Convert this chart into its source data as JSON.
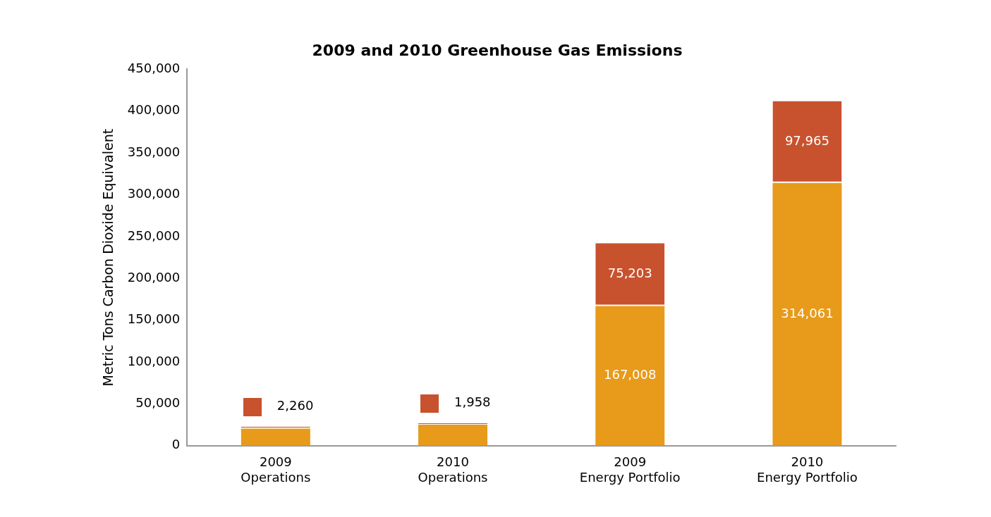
{
  "chart_data": {
    "type": "bar",
    "title": "2009 and 2010 Greenhouse Gas Emissions",
    "ylabel": "Metric Tons Carbon Dioxide Equivalent",
    "categories": [
      "2009\nOperations",
      "2010\nOperations",
      "2009\nEnergy Portfolio",
      "2010\nEnergy Portfolio"
    ],
    "stacked": true,
    "series": [
      {
        "color": "#e89a1a",
        "values": [
          20500,
          25000,
          167008,
          314061
        ],
        "value_labels": [
          null,
          null,
          "167,008",
          "314,061"
        ]
      },
      {
        "color": "#c8522e",
        "values": [
          2260,
          1958,
          75203,
          97965
        ],
        "value_labels": [
          "2,260",
          "1,958",
          "75,203",
          "97,965"
        ]
      }
    ],
    "ylim": [
      0,
      450000
    ],
    "yticks": [
      {
        "value": 0,
        "label": "0"
      },
      {
        "value": 50000,
        "label": "50,000"
      },
      {
        "value": 100000,
        "label": "100,000"
      },
      {
        "value": 150000,
        "label": "150,000"
      },
      {
        "value": 200000,
        "label": "200,000"
      },
      {
        "value": 250000,
        "label": "250,000"
      },
      {
        "value": 300000,
        "label": "300,000"
      },
      {
        "value": 350000,
        "label": "350,000"
      },
      {
        "value": 400000,
        "label": "400,000"
      },
      {
        "value": 450000,
        "label": "450,000"
      }
    ],
    "grid": false,
    "legend": false
  }
}
